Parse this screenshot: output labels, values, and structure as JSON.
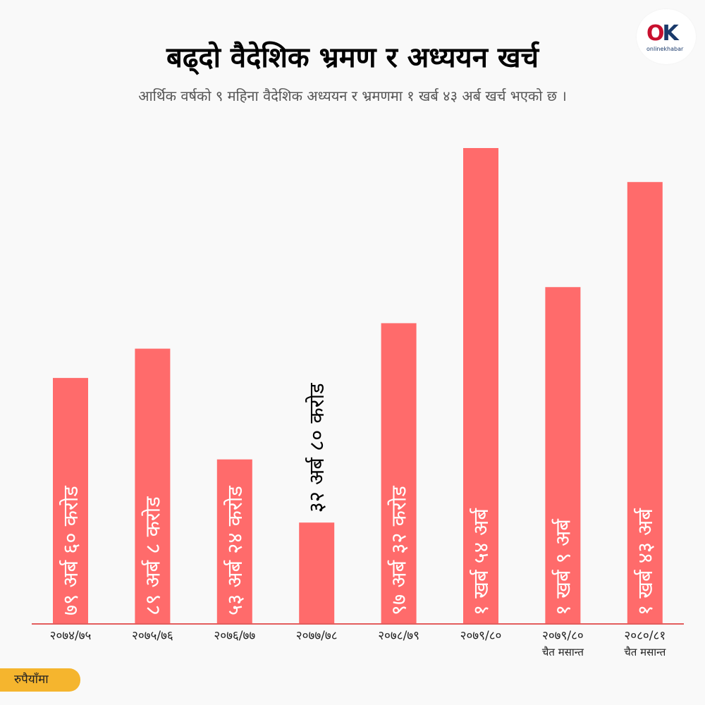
{
  "header": {
    "title": "बढ्दो  वैदेशिक भ्रमण र अध्ययन खर्च",
    "subtitle": "आर्थिक वर्षको ९ महिना वैदेशिक अध्ययन र भ्रमणमा १ खर्ब ४३ अर्ब खर्च भएको छ ।"
  },
  "logo": {
    "text": "onlinekhabar",
    "mark_o": "O",
    "mark_k": "K"
  },
  "unit_label": "रुपैयाँमा",
  "colors": {
    "bar": "#ff6b6b",
    "axis": "#e35d5d",
    "inside_label": "#ffffff",
    "outside_label": "#000000",
    "unit_badge": "#f5b52e"
  },
  "chart_data": {
    "type": "bar",
    "categories": [
      "२०७४/७५",
      "२०७५/७६",
      "२०७६/७७",
      "२०७७/७८",
      "२०७८/७९",
      "२०७९/८०",
      "२०७९/८० चैत मसान्त",
      "२०८०/८१ चैत मसान्त"
    ],
    "category_lines": [
      [
        "२०७४/७५"
      ],
      [
        "२०७५/७६"
      ],
      [
        "२०७६/७७"
      ],
      [
        "२०७७/७८"
      ],
      [
        "२०७८/७९"
      ],
      [
        "२०७९/८०"
      ],
      [
        "२०७९/८०",
        "चैत मसान्त"
      ],
      [
        "२०८०/८१",
        "चैत मसान्त"
      ]
    ],
    "values": [
      79.6,
      89.08,
      53.24,
      32.8,
      97.32,
      154,
      109,
      143
    ],
    "value_unit": "अर्ब रुपैयाँ",
    "data_labels": [
      "७९ अर्ब ६० करोड",
      "८९ अर्ब ८ करोड",
      "५३ अर्ब २४ करोड",
      "३२ अर्ब ८० करोड",
      "९७ अर्ब ३२ करोड",
      "१ खर्ब ५४ अर्ब",
      "१ खर्ब ९ अर्ब",
      "१ खर्ब ४३ अर्ब"
    ],
    "label_outside": [
      false,
      false,
      false,
      true,
      false,
      false,
      false,
      false
    ],
    "ylim": [
      0,
      170
    ],
    "grid": false
  }
}
